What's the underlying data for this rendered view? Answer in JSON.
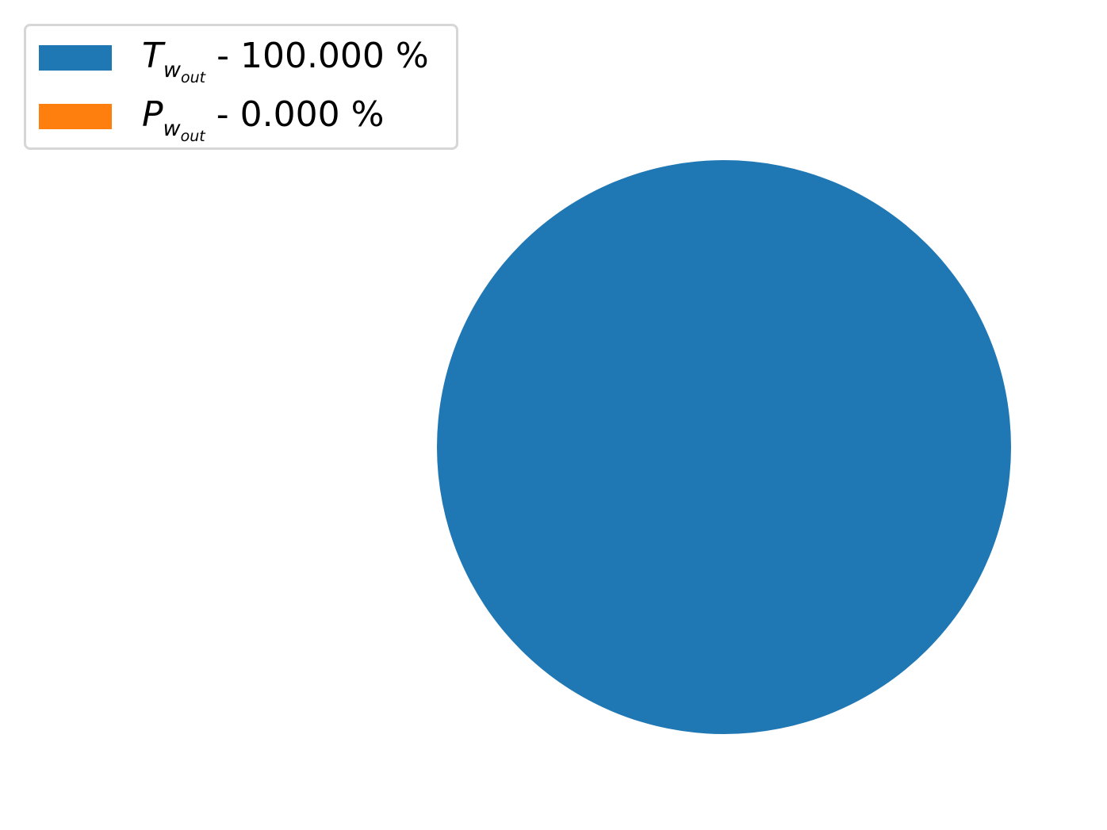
{
  "chart_data": {
    "type": "pie",
    "title": "",
    "slices": [
      {
        "label": "T_w_out",
        "value": 100.0,
        "percent_text": "100.000 %",
        "color": "#1f77b4"
      },
      {
        "label": "P_w_out",
        "value": 0.0,
        "percent_text": "0.000 %",
        "color": "#ff7f0e"
      }
    ],
    "legend": {
      "placement": "top-left",
      "entries": [
        {
          "var": "T",
          "sub": "w",
          "subsub": "out",
          "text": " - 100.000 %",
          "color": "#1f77b4"
        },
        {
          "var": "P",
          "sub": "w",
          "subsub": "out",
          "text": " - 0.000 %",
          "color": "#ff7f0e"
        }
      ]
    }
  }
}
